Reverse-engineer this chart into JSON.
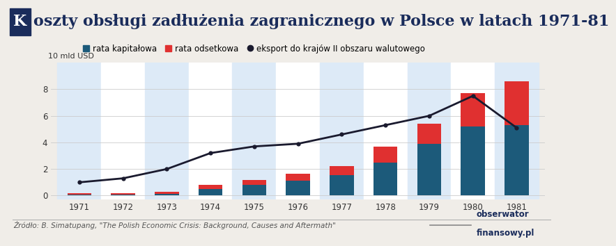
{
  "years": [
    1971,
    1972,
    1973,
    1974,
    1975,
    1976,
    1977,
    1978,
    1979,
    1980,
    1981
  ],
  "rata_kapitalowa": [
    0.1,
    0.1,
    0.15,
    0.5,
    0.8,
    1.1,
    1.55,
    2.5,
    3.9,
    5.2,
    5.3
  ],
  "rata_odsetkowa": [
    0.1,
    0.1,
    0.15,
    0.3,
    0.4,
    0.55,
    0.65,
    1.2,
    1.5,
    2.5,
    3.3
  ],
  "eksport": [
    1.0,
    1.3,
    2.0,
    3.2,
    3.7,
    3.9,
    4.6,
    5.3,
    6.0,
    7.5,
    5.1
  ],
  "title_rest": "oszty obsługi zadłużenia zagranicznego w Polsce w latach 1971-81",
  "ylabel": "10 mld USD",
  "label_kapitalowa": "rata kapitałowa",
  "label_odsetkowa": "rata odsetkowa",
  "label_eksport": "eksport do krajów II obszaru walutowego",
  "color_kapitalowa": "#1c5a7a",
  "color_odsetkowa": "#e03030",
  "color_eksport": "#1a1a2e",
  "bg_bar_odd": "#ddeaf7",
  "bg_bar_even": "#ffffff",
  "bg_figure": "#f0ede8",
  "bg_chart": "#f0ede8",
  "ylim": [
    -0.3,
    10
  ],
  "yticks": [
    0,
    2,
    4,
    6,
    8
  ],
  "source_text": "Źródło: B. Simatupang, \"The Polish Economic Crisis: Background, Causes and Aftermath\"",
  "brand_line": "obserwator",
  "brand_line2": "finansowy.pl",
  "title_bg_color": "#1a2c5b",
  "title_text_color": "#1a2c5b"
}
